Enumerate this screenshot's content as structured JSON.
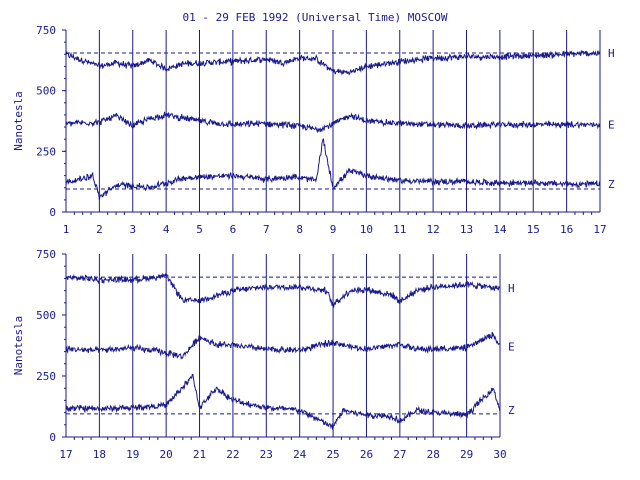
{
  "colors": {
    "ink": "#1a1a8c",
    "background": "#ffffff"
  },
  "chart_data": [
    {
      "type": "line",
      "title": "01 - 29 FEB 1992 (Universal Time) MOSCOW",
      "ylabel": "Nanotesla",
      "xlim": [
        1,
        17
      ],
      "ylim": [
        0,
        750
      ],
      "x_ticks": [
        1,
        2,
        3,
        4,
        5,
        6,
        7,
        8,
        9,
        10,
        11,
        12,
        13,
        14,
        15,
        16,
        17
      ],
      "y_ticks": [
        0,
        250,
        500,
        750
      ],
      "grid": "vertical lines at each day",
      "reference_lines": [
        655,
        95
      ],
      "series": [
        {
          "name": "H",
          "baseline": [
            [
              1,
              650
            ],
            [
              2,
              600
            ],
            [
              2.5,
              615
            ],
            [
              3,
              600
            ],
            [
              3.5,
              625
            ],
            [
              4,
              590
            ],
            [
              4.5,
              610
            ],
            [
              5,
              615
            ],
            [
              6,
              620
            ],
            [
              7,
              630
            ],
            [
              7.5,
              615
            ],
            [
              8,
              635
            ],
            [
              8.5,
              630
            ],
            [
              9,
              580
            ],
            [
              9.5,
              575
            ],
            [
              10,
              600
            ],
            [
              11,
              620
            ],
            [
              12,
              635
            ],
            [
              13,
              640
            ],
            [
              14,
              640
            ],
            [
              15,
              645
            ],
            [
              16,
              650
            ],
            [
              17,
              655
            ]
          ]
        },
        {
          "name": "E",
          "baseline": [
            [
              1,
              365
            ],
            [
              2,
              370
            ],
            [
              2.5,
              395
            ],
            [
              3,
              355
            ],
            [
              3.5,
              385
            ],
            [
              4,
              400
            ],
            [
              5,
              375
            ],
            [
              6,
              360
            ],
            [
              7,
              365
            ],
            [
              8,
              355
            ],
            [
              8.5,
              340
            ],
            [
              9,
              360
            ],
            [
              9.5,
              400
            ],
            [
              10,
              375
            ],
            [
              11,
              365
            ],
            [
              12,
              360
            ],
            [
              13,
              355
            ],
            [
              14,
              360
            ],
            [
              15,
              360
            ],
            [
              16,
              360
            ],
            [
              17,
              360
            ]
          ]
        },
        {
          "name": "Z",
          "baseline": [
            [
              1,
              120
            ],
            [
              1.8,
              150
            ],
            [
              2,
              60
            ],
            [
              2.5,
              110
            ],
            [
              3,
              110
            ],
            [
              3.5,
              100
            ],
            [
              4,
              120
            ],
            [
              4.5,
              140
            ],
            [
              5,
              145
            ],
            [
              6,
              150
            ],
            [
              7,
              135
            ],
            [
              7.8,
              145
            ],
            [
              8.5,
              130
            ],
            [
              8.7,
              300
            ],
            [
              9,
              100
            ],
            [
              9.5,
              170
            ],
            [
              10,
              150
            ],
            [
              11,
              130
            ],
            [
              12,
              125
            ],
            [
              13,
              125
            ],
            [
              14,
              120
            ],
            [
              15,
              120
            ],
            [
              16,
              115
            ],
            [
              17,
              115
            ]
          ]
        }
      ]
    },
    {
      "type": "line",
      "ylabel": "Nanotesla",
      "xlim": [
        17,
        30
      ],
      "ylim": [
        0,
        750
      ],
      "x_ticks": [
        17,
        18,
        19,
        20,
        21,
        22,
        23,
        24,
        25,
        26,
        27,
        28,
        29,
        30
      ],
      "y_ticks": [
        0,
        250,
        500,
        750
      ],
      "grid": "vertical lines at each day",
      "reference_lines": [
        655,
        95
      ],
      "series": [
        {
          "name": "H",
          "baseline": [
            [
              17,
              655
            ],
            [
              18,
              645
            ],
            [
              19,
              645
            ],
            [
              20,
              660
            ],
            [
              20.5,
              560
            ],
            [
              21,
              560
            ],
            [
              22,
              600
            ],
            [
              23,
              615
            ],
            [
              24,
              615
            ],
            [
              24.8,
              600
            ],
            [
              25,
              540
            ],
            [
              25.5,
              600
            ],
            [
              26,
              605
            ],
            [
              26.8,
              580
            ],
            [
              27,
              555
            ],
            [
              27.5,
              600
            ],
            [
              28,
              615
            ],
            [
              29,
              625
            ],
            [
              30,
              610
            ]
          ]
        },
        {
          "name": "E",
          "baseline": [
            [
              17,
              360
            ],
            [
              18,
              355
            ],
            [
              19,
              365
            ],
            [
              19.8,
              350
            ],
            [
              20.5,
              330
            ],
            [
              21,
              410
            ],
            [
              21.5,
              380
            ],
            [
              22,
              375
            ],
            [
              23,
              360
            ],
            [
              24,
              355
            ],
            [
              25,
              390
            ],
            [
              25.5,
              370
            ],
            [
              26,
              360
            ],
            [
              27,
              380
            ],
            [
              27.5,
              360
            ],
            [
              28,
              360
            ],
            [
              29,
              365
            ],
            [
              29.8,
              420
            ],
            [
              30,
              370
            ]
          ]
        },
        {
          "name": "Z",
          "baseline": [
            [
              17,
              120
            ],
            [
              18,
              115
            ],
            [
              19,
              120
            ],
            [
              20,
              130
            ],
            [
              20.8,
              250
            ],
            [
              21,
              120
            ],
            [
              21.5,
              200
            ],
            [
              22,
              150
            ],
            [
              23,
              120
            ],
            [
              24,
              110
            ],
            [
              25,
              40
            ],
            [
              25.3,
              110
            ],
            [
              26,
              90
            ],
            [
              26.8,
              85
            ],
            [
              27,
              65
            ],
            [
              27.5,
              110
            ],
            [
              28,
              100
            ],
            [
              29,
              90
            ],
            [
              29.8,
              200
            ],
            [
              30,
              110
            ]
          ]
        }
      ]
    }
  ]
}
